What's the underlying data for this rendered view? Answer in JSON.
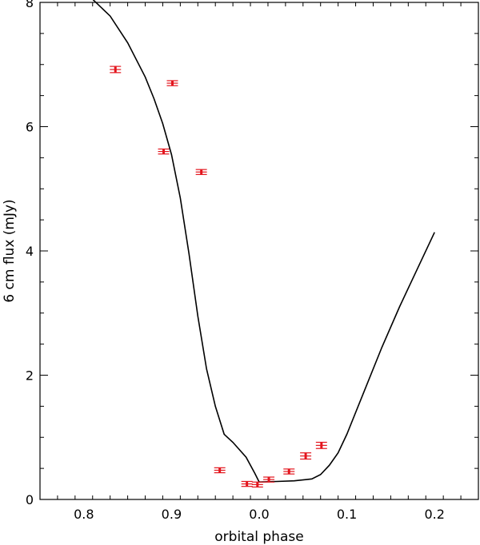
{
  "chart_data": {
    "type": "scatter",
    "title": "",
    "xlabel": "orbital phase",
    "ylabel": "6 cm flux (mJy)",
    "x_ticks": [
      {
        "value": 0.8,
        "label": "0.8"
      },
      {
        "value": 0.9,
        "label": "0.9"
      },
      {
        "value": 1.0,
        "label": "0.0"
      },
      {
        "value": 1.1,
        "label": "0.1"
      },
      {
        "value": 1.2,
        "label": "0.2"
      }
    ],
    "y_ticks": [
      0,
      2,
      4,
      6,
      8
    ],
    "xlim": [
      0.75,
      1.25
    ],
    "ylim": [
      0,
      8
    ],
    "grid": false,
    "series": [
      {
        "type": "line",
        "color": "#000000",
        "x": [
          0.81,
          0.83,
          0.85,
          0.87,
          0.88,
          0.89,
          0.9,
          0.91,
          0.92,
          0.93,
          0.94,
          0.95,
          0.96,
          0.97,
          0.985,
          0.995,
          1.0,
          1.02,
          1.04,
          1.06,
          1.07,
          1.08,
          1.09,
          1.1,
          1.12,
          1.14,
          1.16,
          1.18,
          1.2
        ],
        "y": [
          8.05,
          7.78,
          7.35,
          6.8,
          6.45,
          6.05,
          5.55,
          4.85,
          3.95,
          2.95,
          2.1,
          1.5,
          1.05,
          0.92,
          0.68,
          0.42,
          0.28,
          0.29,
          0.3,
          0.33,
          0.4,
          0.55,
          0.75,
          1.05,
          1.75,
          2.45,
          3.1,
          3.7,
          4.3
        ]
      },
      {
        "type": "scatter",
        "color": "#e3151d",
        "x": [
          0.836,
          0.891,
          0.901,
          0.934,
          0.955,
          0.986,
          0.998,
          1.011,
          1.034,
          1.053,
          1.071
        ],
        "y": [
          6.92,
          5.6,
          6.7,
          5.27,
          0.47,
          0.25,
          0.24,
          0.32,
          0.45,
          0.7,
          0.87
        ],
        "yerr": [
          0.05,
          0.04,
          0.04,
          0.04,
          0.04,
          0.04,
          0.04,
          0.04,
          0.04,
          0.05,
          0.05
        ]
      }
    ]
  }
}
